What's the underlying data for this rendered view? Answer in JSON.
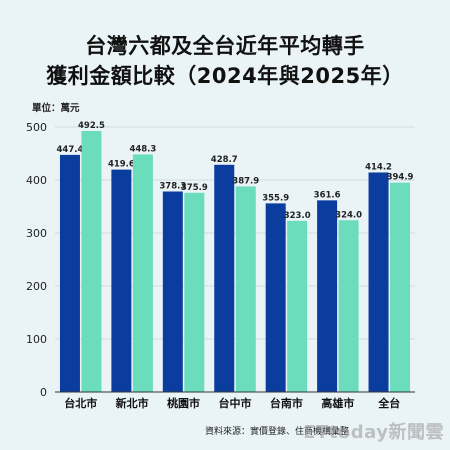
{
  "chart_data": {
    "type": "bar",
    "title_line1": "台灣六都及全台近年平均轉手",
    "title_line2": "獲利金額比較（2024年與2025年）",
    "unit_label": "單位：萬元",
    "categories": [
      "台北市",
      "新北市",
      "桃園市",
      "台中市",
      "台南市",
      "高雄市",
      "全台"
    ],
    "series": [
      {
        "values": [
          447.4,
          419.6,
          378.3,
          428.7,
          355.9,
          361.6,
          414.2
        ],
        "color": "#0a3d9e"
      },
      {
        "values": [
          492.5,
          448.3,
          375.9,
          387.9,
          323.0,
          324.0,
          394.9
        ],
        "color": "#6bdcbc"
      }
    ],
    "value_labels": [
      [
        "447.4",
        "419.6",
        "378.3",
        "428.7",
        "355.9",
        "361.6",
        "414.2"
      ],
      [
        "492.5",
        "448.3",
        "375.9",
        "387.9",
        "323.0",
        "324.0",
        "394.9"
      ]
    ],
    "ylim": [
      0,
      500
    ],
    "yticks": [
      "0",
      "100",
      "200",
      "300",
      "400",
      "500"
    ],
    "grid": true,
    "legend": "none"
  },
  "source_text": "資料來源：實價登錄、住商機構彙整",
  "watermark": "ETtoday新聞雲"
}
